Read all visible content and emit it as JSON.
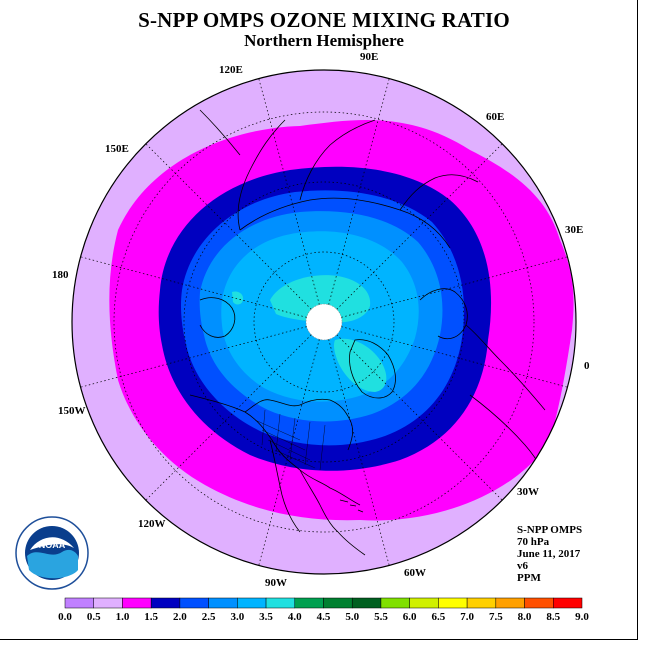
{
  "title": "S-NPP OMPS OZONE MIXING RATIO",
  "subtitle": "Northern Hemisphere",
  "longitude_labels": [
    "90E",
    "60E",
    "30E",
    "0",
    "30W",
    "60W",
    "90W",
    "120W",
    "150W",
    "180",
    "150E",
    "120E"
  ],
  "info": {
    "instrument": "S-NPP OMPS",
    "pressure": "70 hPa",
    "date": "June 11, 2017",
    "version": "v6",
    "units": "PPM"
  },
  "logo": {
    "text": "NOAA",
    "ring_text": "NATIONAL OCEANIC AND ATMOSPHERIC ADMINISTRATION · U.S. DEPARTMENT OF COMMERCE"
  },
  "colorbar": {
    "ticks": [
      "0.0",
      "0.5",
      "1.0",
      "1.5",
      "2.0",
      "2.5",
      "3.0",
      "3.5",
      "4.0",
      "4.5",
      "5.0",
      "5.5",
      "6.0",
      "6.5",
      "7.0",
      "7.5",
      "8.0",
      "8.5",
      "9.0"
    ],
    "colors": [
      "#c080ff",
      "#e0b0ff",
      "#ff00ff",
      "#0000c0",
      "#0050ff",
      "#0090ff",
      "#00b4ff",
      "#20e0e0",
      "#00a050",
      "#008030",
      "#006020",
      "#80e000",
      "#d0f000",
      "#ffff00",
      "#ffd000",
      "#ffa000",
      "#ff5000",
      "#ff0000",
      "#8b4513"
    ]
  }
}
